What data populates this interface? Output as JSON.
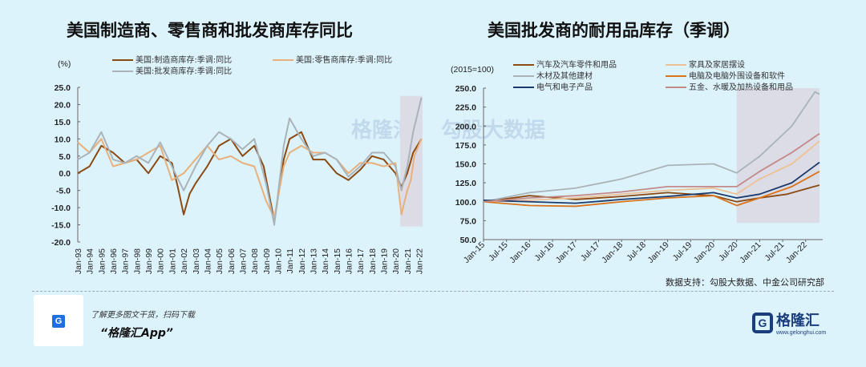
{
  "chart_data": [
    {
      "type": "line",
      "title": "美国制造商、零售商和批发商库存同比",
      "ylabel": "(%)",
      "ylim": [
        -20,
        25
      ],
      "yticks": [
        "25.0",
        "20.0",
        "15.0",
        "10.0",
        "5.0",
        "0.0",
        "-5.0",
        "-10.0",
        "-15.0",
        "-20.0"
      ],
      "xticks": [
        "Jan-93",
        "Jan-94",
        "Jan-95",
        "Jan-96",
        "Jan-97",
        "Jan-98",
        "Jan-99",
        "Jan-00",
        "Jan-01",
        "Jan-02",
        "Jan-03",
        "Jan-04",
        "Jan-05",
        "Jan-06",
        "Jan-07",
        "Jan-08",
        "Jan-09",
        "Jan-10",
        "Jan-11",
        "Jan-12",
        "Jan-13",
        "Jan-14",
        "Jan-15",
        "Jan-16",
        "Jan-17",
        "Jan-18",
        "Jan-19",
        "Jan-20",
        "Jan-21",
        "Jan-22"
      ],
      "xlim": [
        1993,
        2022.3
      ],
      "highlight": {
        "x": [
          2020.4,
          2022.3
        ],
        "y": [
          -15.5,
          22.5
        ]
      },
      "series": [
        {
          "name": "美国:制造商库存:季调:同比",
          "color": "#8b4a12",
          "x": [
            1993,
            1994,
            1995,
            1996,
            1997,
            1998,
            1999,
            2000,
            2001,
            2001.5,
            2002,
            2002.5,
            2003,
            2004,
            2005,
            2006,
            2007,
            2008,
            2008.8,
            2009.7,
            2010.5,
            2011,
            2012,
            2013,
            2014,
            2015,
            2016,
            2017,
            2018,
            2019,
            2020,
            2020.5,
            2021,
            2021.5,
            2022.2
          ],
          "y": [
            0,
            2,
            8,
            6,
            3,
            4,
            0,
            5,
            3,
            -4,
            -12,
            -6,
            -3,
            2,
            8,
            10,
            5,
            8,
            2,
            -14,
            4,
            10,
            12,
            4,
            4,
            0,
            -2,
            1,
            5,
            4,
            0,
            -4,
            0,
            6,
            10
          ]
        },
        {
          "name": "美国:零售商库存:季调:同比",
          "color": "#e8b07a",
          "x": [
            1993,
            1994,
            1995,
            1996,
            1997,
            1998,
            1999,
            2000,
            2001,
            2002,
            2003,
            2004,
            2005,
            2006,
            2007,
            2008,
            2009,
            2009.7,
            2010.5,
            2011,
            2012,
            2013,
            2014,
            2015,
            2016,
            2017,
            2018,
            2019,
            2020,
            2020.5,
            2021,
            2021.3,
            2021.6,
            2022.2
          ],
          "y": [
            9,
            6,
            10,
            2,
            3,
            4,
            6,
            8,
            -2,
            0,
            4,
            8,
            4,
            5,
            3,
            2,
            -8,
            -13,
            2,
            6,
            8,
            6,
            6,
            4,
            0,
            3,
            3,
            2,
            3,
            -12,
            -5,
            -2,
            5,
            10
          ]
        },
        {
          "name": "美国:批发商库存:季调:同比",
          "color": "#a9b3b8",
          "x": [
            1993,
            1994,
            1995,
            1996,
            1997,
            1998,
            1999,
            2000,
            2001,
            2002,
            2003,
            2004,
            2005,
            2006,
            2007,
            2008,
            2009,
            2009.7,
            2010.5,
            2011,
            2012,
            2013,
            2014,
            2015,
            2016,
            2017,
            2018,
            2019,
            2020,
            2020.5,
            2021,
            2021.5,
            2022.2
          ],
          "y": [
            4,
            6,
            12,
            4,
            3,
            5,
            3,
            9,
            2,
            -5,
            2,
            8,
            12,
            10,
            7,
            10,
            -3,
            -15,
            8,
            16,
            10,
            5,
            6,
            4,
            -1,
            2,
            6,
            6,
            2,
            -5,
            2,
            12,
            22
          ]
        }
      ]
    },
    {
      "type": "line",
      "title": "美国批发商的耐用品库存（季调）",
      "ylabel": "(2015=100)",
      "ylim": [
        50,
        250
      ],
      "yticks": [
        "250.0",
        "225.0",
        "200.0",
        "175.0",
        "150.0",
        "125.0",
        "100.0",
        "75.0",
        "50.0"
      ],
      "xticks": [
        "Jan-15",
        "Jul-15",
        "Jan-16",
        "Jul-16",
        "Jan-17",
        "Jul-17",
        "Jan-18",
        "Jul-18",
        "Jan-19",
        "Jul-19",
        "Jan-20",
        "Jul-20",
        "Jan-21",
        "Jul-21",
        "Jan-22"
      ],
      "xlim": [
        2015,
        2022.3
      ],
      "highlight": {
        "x": [
          2020.5,
          2022.3
        ],
        "y": [
          72,
          250
        ]
      },
      "series": [
        {
          "name": "汽车及汽车零件和用品",
          "color": "#8b4a12",
          "x": [
            2015,
            2016,
            2017,
            2018,
            2019,
            2020,
            2020.5,
            2021,
            2021.6,
            2022.3
          ],
          "y": [
            100,
            108,
            103,
            107,
            112,
            108,
            100,
            105,
            110,
            122
          ]
        },
        {
          "name": "家具及家居摆设",
          "color": "#eec195",
          "x": [
            2015,
            2016,
            2017,
            2018,
            2019,
            2020,
            2020.5,
            2021,
            2021.7,
            2022.3
          ],
          "y": [
            100,
            102,
            105,
            110,
            115,
            118,
            110,
            130,
            150,
            180
          ]
        },
        {
          "name": "木材及其他建材",
          "color": "#a9b3b8",
          "x": [
            2015,
            2016,
            2017,
            2018,
            2019,
            2020,
            2020.5,
            2021,
            2021.7,
            2022.2,
            2022.3
          ],
          "y": [
            100,
            112,
            118,
            130,
            148,
            150,
            138,
            160,
            200,
            245,
            242
          ]
        },
        {
          "name": "电脑及电脑外围设备和软件",
          "color": "#d9731c",
          "x": [
            2015,
            2016,
            2017,
            2018,
            2019,
            2020,
            2020.5,
            2021,
            2021.7,
            2022.3
          ],
          "y": [
            100,
            95,
            94,
            100,
            105,
            108,
            95,
            105,
            120,
            140
          ]
        },
        {
          "name": "电气和电子产品",
          "color": "#1b3a6b",
          "x": [
            2015,
            2016,
            2017,
            2018,
            2019,
            2020,
            2020.5,
            2021,
            2021.7,
            2022.3
          ],
          "y": [
            102,
            100,
            98,
            103,
            107,
            112,
            105,
            110,
            125,
            152
          ]
        },
        {
          "name": "五金、水暖及加热设备和用品",
          "color": "#c48a8a",
          "x": [
            2015,
            2016,
            2017,
            2018,
            2019,
            2020,
            2020.5,
            2021,
            2021.7,
            2022.3
          ],
          "y": [
            100,
            105,
            108,
            113,
            120,
            120,
            120,
            140,
            165,
            190
          ]
        }
      ]
    }
  ],
  "source": "数据支持：勾股大数据、中金公司研究部",
  "promo": "了解更多图文干货，扫码下载",
  "app": "“格隆汇App”",
  "brand": {
    "name": "格隆汇",
    "url": "www.gelonghui.com"
  },
  "watermark": {
    "left": "格隆汇",
    "right": "勾股大数据",
    "right_url": "www.gogudata.com"
  }
}
